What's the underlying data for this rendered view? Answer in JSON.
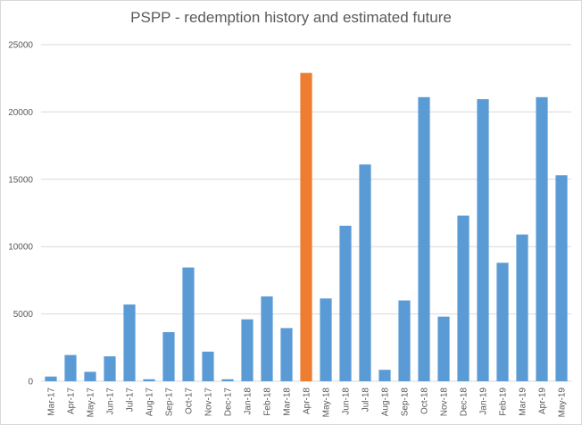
{
  "chart_data": {
    "type": "bar",
    "title": "PSPP - redemption history and estimated future",
    "xlabel": "",
    "ylabel": "",
    "ylim": [
      0,
      25000
    ],
    "yticks": [
      0,
      5000,
      10000,
      15000,
      20000,
      25000
    ],
    "grid": true,
    "legend": "none",
    "categories": [
      "Mar-17",
      "Apr-17",
      "May-17",
      "Jun-17",
      "Jul-17",
      "Aug-17",
      "Sep-17",
      "Oct-17",
      "Nov-17",
      "Dec-17",
      "Jan-18",
      "Feb-18",
      "Mar-18",
      "Apr-18",
      "May-18",
      "Jun-18",
      "Jul-18",
      "Aug-18",
      "Sep-18",
      "Oct-18",
      "Nov-18",
      "Dec-18",
      "Jan-19",
      "Feb-19",
      "Mar-19",
      "Apr-19",
      "May-19"
    ],
    "values": [
      350,
      1950,
      700,
      1850,
      5700,
      150,
      3650,
      8450,
      2200,
      150,
      4600,
      6300,
      3950,
      22900,
      6150,
      11550,
      16100,
      850,
      6000,
      21100,
      4800,
      12300,
      20950,
      8800,
      10900,
      21100,
      15300
    ],
    "colors": {
      "default": "#5b9bd5",
      "highlight": "#ed7d31",
      "grid": "#d9d9d9",
      "text": "#595959"
    },
    "highlight_category": "Apr-18"
  }
}
